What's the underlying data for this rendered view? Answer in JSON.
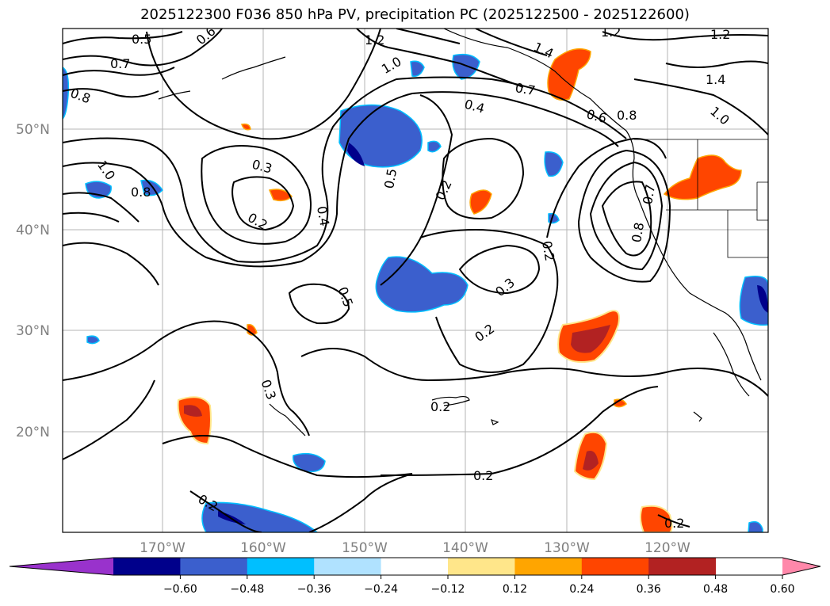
{
  "title": "2025122300 F036 850 hPa PV, precipitation PC (2025122500 - 2025122600)",
  "lat_labels": [
    "50°N",
    "40°N",
    "30°N",
    "20°N"
  ],
  "lon_labels": [
    "170°W",
    "160°W",
    "150°W",
    "140°W",
    "130°W",
    "120°W"
  ],
  "contour_labels": [
    "0.5",
    "0.6",
    "0.7",
    "0.8",
    "1.2",
    "1.4",
    "1.2",
    "1.2",
    "1.0",
    "1.4",
    "0.7",
    "0.4",
    "0.8",
    "0.6",
    "1.0",
    "0.3",
    "0.2",
    "0.4",
    "0.5",
    "0.2",
    "1.0",
    "0.8",
    "0.5",
    "0.3",
    "0.2",
    "0.2",
    "0.3",
    "0.2",
    "0.2",
    "0.2",
    "0.2",
    "0.8",
    "0.7"
  ],
  "colorbar": {
    "ticks": [
      "−0.60",
      "−0.48",
      "−0.36",
      "−0.24",
      "−0.12",
      "0.12",
      "0.24",
      "0.36",
      "0.48",
      "0.60"
    ],
    "colors": [
      "#9932cc",
      "#00008b",
      "#3b5fcd",
      "#00bfff",
      "#b0e2ff",
      "#ffffff",
      "#ffe68a",
      "#ffa500",
      "#ff4500",
      "#b22222",
      "#ff88aa"
    ]
  }
}
